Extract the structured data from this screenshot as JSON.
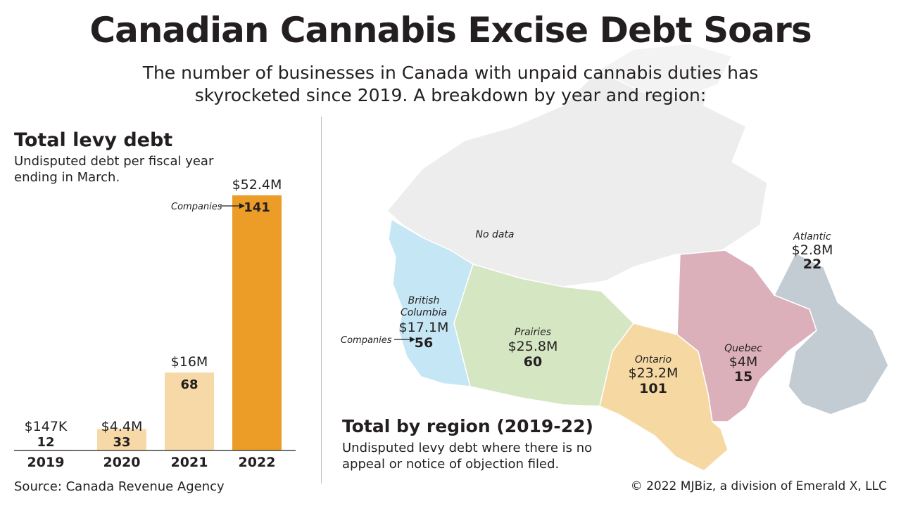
{
  "header": {
    "title": "Canadian Cannabis Excise Debt Soars",
    "subtitle": "The number of businesses in Canada with unpaid cannabis duties has skyrocketed since 2019. A breakdown by year and region:"
  },
  "levy_panel": {
    "heading": "Total levy debt",
    "description": "Undisputed debt per fiscal year ending in March.",
    "companies_label": "Companies"
  },
  "region_panel": {
    "heading": "Total by region (2019-22)",
    "description": "Undisputed levy debt where there is no appeal or notice of objection filed.",
    "companies_label": "Companies",
    "no_data_label": "No data"
  },
  "footer": {
    "source": "Source: Canada Revenue Agency",
    "copyright": "© 2022 MJBiz, a division of Emerald X, LLC"
  },
  "colors": {
    "bar_light": "#f7d9a8",
    "bar_highlight": "#ec9d28",
    "bc": "#c5e6f4",
    "prairies": "#d5e6c3",
    "ontario": "#f6d8a3",
    "quebec": "#dcb0bb",
    "atlantic": "#c3ccd3",
    "no_data": "#ededed"
  },
  "chart_data": [
    {
      "type": "bar",
      "title": "Total levy debt",
      "categories": [
        "2019",
        "2020",
        "2021",
        "2022"
      ],
      "series": [
        {
          "name": "Debt",
          "values": [
            0.147,
            4.4,
            16,
            52.4
          ],
          "units": "$M"
        }
      ],
      "value_labels": [
        "$147K",
        "$4.4M",
        "$16M",
        "$52.4M"
      ],
      "companies": [
        12,
        33,
        68,
        141
      ],
      "highlight_index": 3
    },
    {
      "type": "table",
      "title": "Total by region (2019-22)",
      "columns": [
        "Region",
        "Debt",
        "Companies"
      ],
      "rows": [
        {
          "region": "British Columbia",
          "debt": "$17.1M",
          "companies": 56
        },
        {
          "region": "Prairies",
          "debt": "$25.8M",
          "companies": 60
        },
        {
          "region": "Ontario",
          "debt": "$23.2M",
          "companies": 101
        },
        {
          "region": "Quebec",
          "debt": "$4M",
          "companies": 15
        },
        {
          "region": "Atlantic",
          "debt": "$2.8M",
          "companies": 22
        }
      ]
    }
  ]
}
